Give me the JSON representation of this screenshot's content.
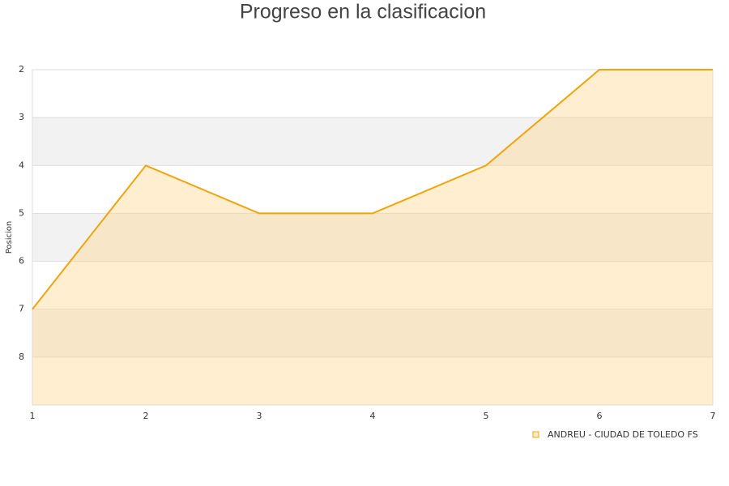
{
  "chart_data": {
    "type": "area",
    "title": "Progreso en la clasificacion",
    "y_label": "Posicion",
    "x": [
      1,
      2,
      3,
      4,
      5,
      6,
      7
    ],
    "xlim": [
      1,
      7
    ],
    "xticks": [
      1,
      2,
      3,
      4,
      5,
      6,
      7
    ],
    "ylim": [
      2,
      9
    ],
    "yticks": [
      2,
      3,
      4,
      5,
      6,
      7,
      8
    ],
    "y_inverted": true,
    "grid": true,
    "series": [
      {
        "name": "ANDREU - CIUDAD DE TOLEDO FS",
        "color": "#f0a30a",
        "values": [
          7,
          4,
          5,
          5,
          4,
          2,
          2
        ]
      }
    ]
  }
}
